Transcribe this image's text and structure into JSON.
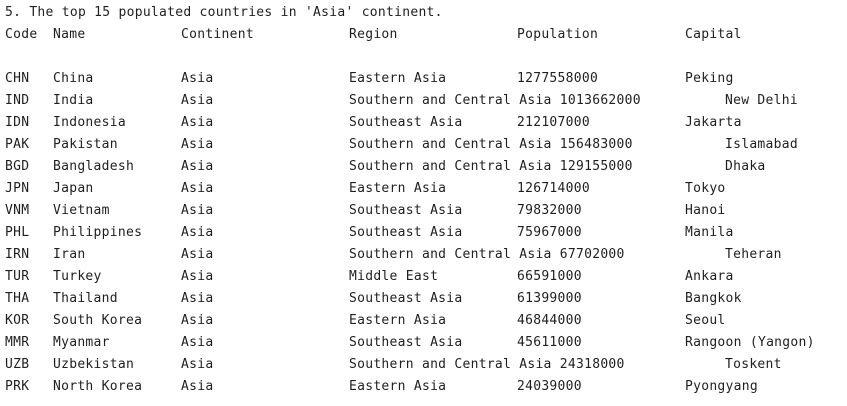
{
  "title": "5. The top 15 populated countries in 'Asia' continent.",
  "headers": {
    "code": "Code",
    "name": "Name",
    "continent": "Continent",
    "region": "Region",
    "population": "Population",
    "capital": "Capital"
  },
  "rows": [
    {
      "code": "CHN",
      "name": "China",
      "continent": "Asia",
      "region": "Eastern Asia",
      "population": "1277558000",
      "capital": "Peking"
    },
    {
      "code": "IND",
      "name": "India",
      "continent": "Asia",
      "region": "Southern and Central Asia",
      "population": "1013662000",
      "capital": "New Delhi"
    },
    {
      "code": "IDN",
      "name": "Indonesia",
      "continent": "Asia",
      "region": "Southeast Asia",
      "population": "212107000",
      "capital": "Jakarta"
    },
    {
      "code": "PAK",
      "name": "Pakistan",
      "continent": "Asia",
      "region": "Southern and Central Asia",
      "population": "156483000",
      "capital": "Islamabad"
    },
    {
      "code": "BGD",
      "name": "Bangladesh",
      "continent": "Asia",
      "region": "Southern and Central Asia",
      "population": "129155000",
      "capital": "Dhaka"
    },
    {
      "code": "JPN",
      "name": "Japan",
      "continent": "Asia",
      "region": "Eastern Asia",
      "population": "126714000",
      "capital": "Tokyo"
    },
    {
      "code": "VNM",
      "name": "Vietnam",
      "continent": "Asia",
      "region": "Southeast Asia",
      "population": "79832000",
      "capital": "Hanoi"
    },
    {
      "code": "PHL",
      "name": "Philippines",
      "continent": "Asia",
      "region": "Southeast Asia",
      "population": "75967000",
      "capital": "Manila"
    },
    {
      "code": "IRN",
      "name": "Iran",
      "continent": "Asia",
      "region": "Southern and Central Asia",
      "population": "67702000",
      "capital": "Teheran"
    },
    {
      "code": "TUR",
      "name": "Turkey",
      "continent": "Asia",
      "region": "Middle East",
      "population": "66591000",
      "capital": "Ankara"
    },
    {
      "code": "THA",
      "name": "Thailand",
      "continent": "Asia",
      "region": "Southeast Asia",
      "population": "61399000",
      "capital": "Bangkok"
    },
    {
      "code": "KOR",
      "name": "South Korea",
      "continent": "Asia",
      "region": "Eastern Asia",
      "population": "46844000",
      "capital": "Seoul"
    },
    {
      "code": "MMR",
      "name": "Myanmar",
      "continent": "Asia",
      "region": "Southeast Asia",
      "population": "45611000",
      "capital": "Rangoon (Yangon)"
    },
    {
      "code": "UZB",
      "name": "Uzbekistan",
      "continent": "Asia",
      "region": "Southern and Central Asia",
      "population": "24318000",
      "capital": "Toskent"
    },
    {
      "code": "PRK",
      "name": "North Korea",
      "continent": "Asia",
      "region": "Eastern Asia",
      "population": "24039000",
      "capital": "Pyongyang"
    }
  ]
}
